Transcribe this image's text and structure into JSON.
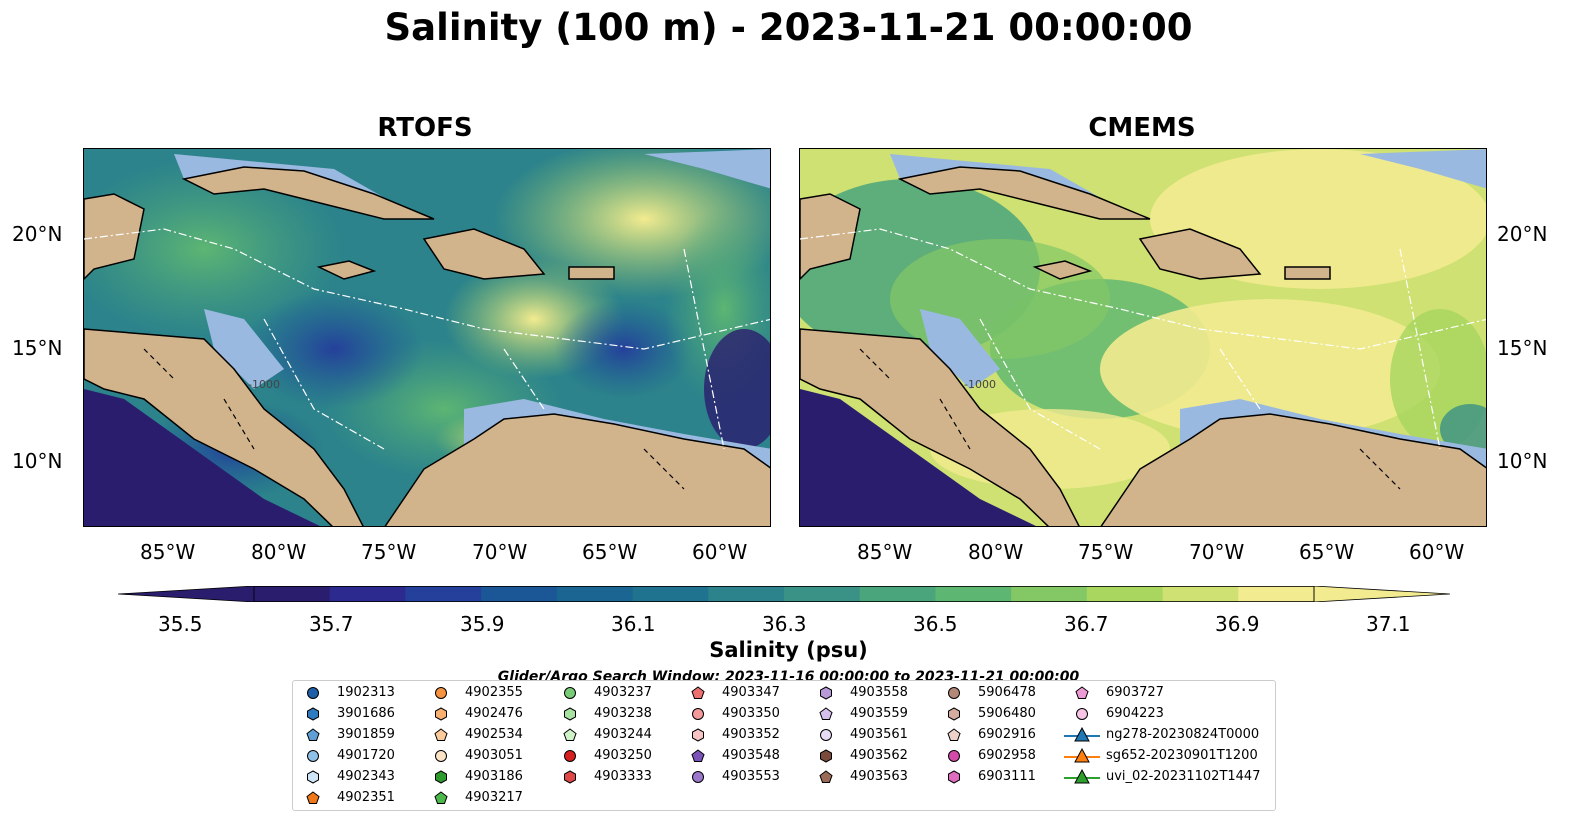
{
  "title": "Salinity (100 m) - 2023-11-21 00:00:00",
  "panels": [
    {
      "id": "rtofs",
      "title": "RTOFS"
    },
    {
      "id": "cmems",
      "title": "CMEMS"
    }
  ],
  "lon_ticks": [
    "85°W",
    "80°W",
    "75°W",
    "70°W",
    "65°W",
    "60°W"
  ],
  "lat_ticks": [
    "20°N",
    "15°N",
    "10°N"
  ],
  "depth_contour_labels": [
    "-1000",
    "-1000"
  ],
  "colorbar": {
    "label": "Salinity (psu)",
    "ticks": [
      "35.5",
      "35.7",
      "35.9",
      "36.1",
      "36.3",
      "36.5",
      "36.7",
      "36.9",
      "37.1"
    ],
    "colors": [
      "#2a1d6e",
      "#2d2a8f",
      "#25409b",
      "#1b5697",
      "#1a6592",
      "#20738e",
      "#2c838b",
      "#3a9186",
      "#4aa57c",
      "#5db672",
      "#83c865",
      "#a8d65e",
      "#cee172",
      "#f3eb90"
    ]
  },
  "search_window": "Glider/Argo Search Window: 2023-11-16 00:00:00 to 2023-11-21 00:00:00",
  "colors": {
    "land": "#d2b48c",
    "shelf": "#9ab9e0",
    "deep_pacific": "#2a1d6e",
    "border_line": "#000000"
  },
  "legend": {
    "columns": [
      [
        {
          "label": "1902313",
          "marker": "circle",
          "color": "#1f5fa8"
        },
        {
          "label": "3901686",
          "marker": "hexagon",
          "color": "#2f7bc0"
        },
        {
          "label": "3901859",
          "marker": "pentagon",
          "color": "#5f9fd6"
        },
        {
          "label": "4901720",
          "marker": "circle",
          "color": "#8fc0e8"
        },
        {
          "label": "4902343",
          "marker": "hexagon",
          "color": "#cfe6f8"
        },
        {
          "label": "4902351",
          "marker": "pentagon",
          "color": "#f07818"
        }
      ],
      [
        {
          "label": "4902355",
          "marker": "circle",
          "color": "#f59340"
        },
        {
          "label": "4902476",
          "marker": "hexagon",
          "color": "#f8b070"
        },
        {
          "label": "4902534",
          "marker": "pentagon",
          "color": "#fbcb9c"
        },
        {
          "label": "4903051",
          "marker": "circle",
          "color": "#fde3c6"
        },
        {
          "label": "4903186",
          "marker": "hexagon",
          "color": "#2e9a2e"
        },
        {
          "label": "4903217",
          "marker": "pentagon",
          "color": "#4cb84c"
        }
      ],
      [
        {
          "label": "4903237",
          "marker": "circle",
          "color": "#78cc78"
        },
        {
          "label": "4903238",
          "marker": "hexagon",
          "color": "#a8e2a0"
        },
        {
          "label": "4903244",
          "marker": "pentagon",
          "color": "#d0f2c8"
        },
        {
          "label": "4903250",
          "marker": "circle",
          "color": "#d62020"
        },
        {
          "label": "4903333",
          "marker": "hexagon",
          "color": "#e04848"
        }
      ],
      [
        {
          "label": "4903347",
          "marker": "pentagon",
          "color": "#ec7070"
        },
        {
          "label": "4903350",
          "marker": "circle",
          "color": "#f49a9a"
        },
        {
          "label": "4903352",
          "marker": "hexagon",
          "color": "#f8c4c4"
        },
        {
          "label": "4903548",
          "marker": "pentagon",
          "color": "#7a52b8"
        },
        {
          "label": "4903553",
          "marker": "circle",
          "color": "#9c78cc"
        }
      ],
      [
        {
          "label": "4903558",
          "marker": "hexagon",
          "color": "#b89ad8"
        },
        {
          "label": "4903559",
          "marker": "pentagon",
          "color": "#d4c0ea"
        },
        {
          "label": "4903561",
          "marker": "circle",
          "color": "#e8dcf4"
        },
        {
          "label": "4903562",
          "marker": "hexagon",
          "color": "#7a4a3a"
        },
        {
          "label": "4903563",
          "marker": "pentagon",
          "color": "#9a6a58"
        }
      ],
      [
        {
          "label": "5906478",
          "marker": "circle",
          "color": "#b48878"
        },
        {
          "label": "5906480",
          "marker": "hexagon",
          "color": "#d4aca0"
        },
        {
          "label": "6902916",
          "marker": "pentagon",
          "color": "#ecd2c8"
        },
        {
          "label": "6902958",
          "marker": "circle",
          "color": "#d44aa8"
        },
        {
          "label": "6903111",
          "marker": "hexagon",
          "color": "#e06cc0"
        }
      ],
      [
        {
          "label": "6903727",
          "marker": "pentagon",
          "color": "#ee9ad4"
        },
        {
          "label": "6904223",
          "marker": "circle",
          "color": "#f7c4e6"
        },
        {
          "label": "ng278-20230824T0000",
          "marker": "triangle-line",
          "color": "#1f77b4"
        },
        {
          "label": "sg652-20230901T1200",
          "marker": "triangle-line",
          "color": "#ff7f0e"
        },
        {
          "label": "uvi_02-20231102T1447",
          "marker": "triangle-line",
          "color": "#2ca02c"
        }
      ]
    ]
  }
}
